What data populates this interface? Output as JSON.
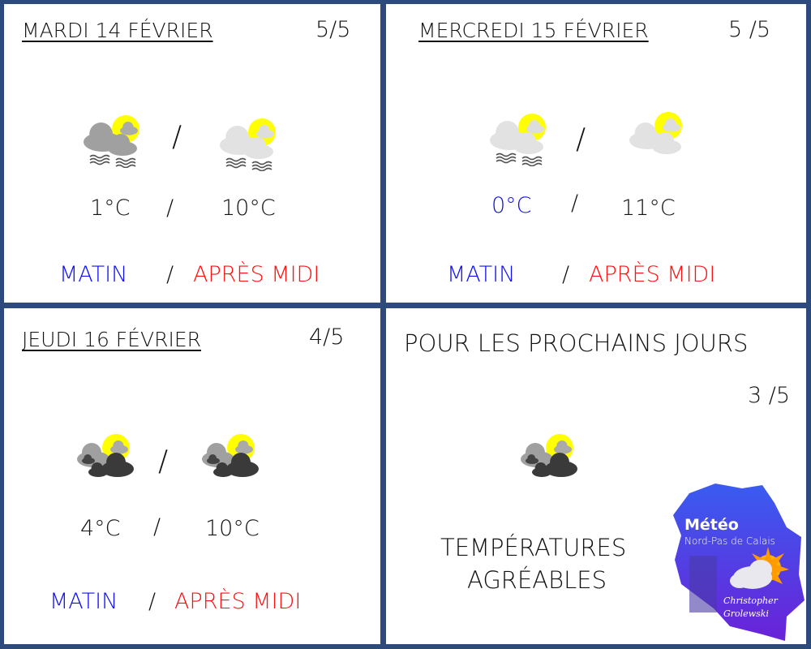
{
  "days": [
    {
      "title": "MARDI 14 FÉVRIER",
      "score": "5/5",
      "icons": [
        "fog-grey",
        "fog-light"
      ],
      "temp_morning": "1°C",
      "temp_afternoon": "10°C",
      "sep": "/",
      "morning_label": "MATIN",
      "afternoon_label": "APRÈS MIDI",
      "morning_temp_color": "#111111"
    },
    {
      "title": "MERCREDI 15 FÉVRIER",
      "score": "5 /5",
      "icons": [
        "fog-light",
        "cloud-light"
      ],
      "temp_morning": "0°C",
      "temp_afternoon": "11°C",
      "sep": "/",
      "morning_label": "MATIN",
      "afternoon_label": "APRÈS MIDI",
      "morning_temp_color": "#1010ee"
    },
    {
      "title": "JEUDI 16 FÉVRIER",
      "score": "4/5",
      "icons": [
        "cloud-dark",
        "cloud-dark"
      ],
      "temp_morning": "4°C",
      "temp_afternoon": "10°C",
      "sep": "/",
      "morning_label": "MATIN",
      "afternoon_label": "APRÈS MIDI",
      "morning_temp_color": "#111111"
    }
  ],
  "outlook": {
    "title": "POUR LES PROCHAINS JOURS",
    "score": "3 /5",
    "icon": "cloud-dark",
    "line1": "TEMPÉRATURES",
    "line2": "AGRÉABLES"
  },
  "logo": {
    "title": "Météo",
    "subtitle": "Nord-Pas de Calais",
    "author1": "Christopher",
    "author2": "Grolewski"
  },
  "colors": {
    "border": "#2c4a7c",
    "morning": "#1010ee",
    "afternoon": "#ff1010",
    "sun": "#ffff00"
  }
}
